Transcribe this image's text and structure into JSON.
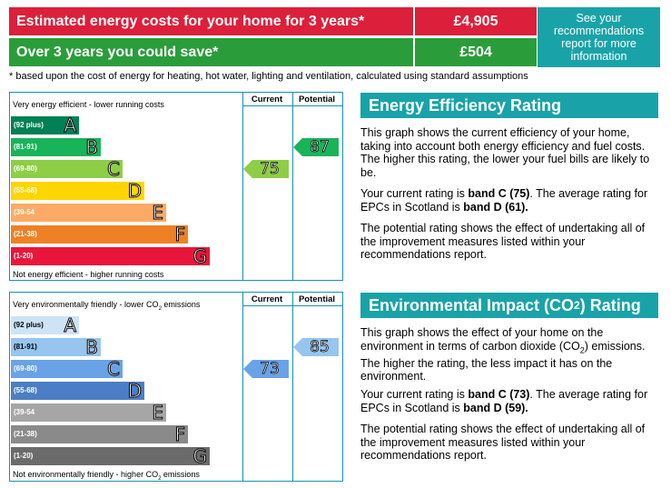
{
  "costs": {
    "estimated_label": "Estimated energy costs for your home for 3 years*",
    "estimated_value": "£4,905",
    "save_label": "Over 3 years you could save*",
    "save_value": "£504",
    "see_recs": "See your recommendations report for more information",
    "footnote": "* based upon the cost of energy for heating, hot water, lighting and ventilation, calculated using standard assumptions"
  },
  "energy_chart": {
    "top_text": "Very energy efficient - lower running costs",
    "bottom_text": "Not energy efficient - higher running costs",
    "col_current": "Current",
    "col_potential": "Potential",
    "current": "75",
    "potential": "87",
    "bands": [
      {
        "range": "(92 plus)",
        "letter": "A",
        "color": "#008054"
      },
      {
        "range": "(81-91)",
        "letter": "B",
        "color": "#19b459"
      },
      {
        "range": "(69-80)",
        "letter": "C",
        "color": "#8dce46"
      },
      {
        "range": "(55-68)",
        "letter": "D",
        "color": "#ffd500"
      },
      {
        "range": "(39-54",
        "letter": "E",
        "color": "#fcaa65"
      },
      {
        "range": "(21-38)",
        "letter": "F",
        "color": "#ef8023"
      },
      {
        "range": "(1-20)",
        "letter": "G",
        "color": "#e9153b"
      }
    ],
    "current_color": "#8dce46",
    "potential_color": "#19b459"
  },
  "env_chart": {
    "top_text": "Very environmentally friendly - lower CO",
    "top_text_sub": "2",
    "top_text_end": " emissions",
    "bottom_text": "Not environmentally friendly - higher CO",
    "bottom_text_sub": "2",
    "bottom_text_end": " emissions",
    "col_current": "Current",
    "col_potential": "Potential",
    "current": "73",
    "potential": "85",
    "bands": [
      {
        "range": "(92 plus)",
        "letter": "A",
        "color": "#cde4f7"
      },
      {
        "range": "(81-91)",
        "letter": "B",
        "color": "#97c5ef"
      },
      {
        "range": "(69-80)",
        "letter": "C",
        "color": "#6aa2e8"
      },
      {
        "range": "(55-68)",
        "letter": "D",
        "color": "#4b7ec4"
      },
      {
        "range": "(39-54",
        "letter": "E",
        "color": "#a6a6a6"
      },
      {
        "range": "(21-38)",
        "letter": "F",
        "color": "#8a8a8a"
      },
      {
        "range": "(1-20)",
        "letter": "G",
        "color": "#6b6b6b"
      }
    ],
    "current_color": "#6aa2e8",
    "potential_color": "#97c5ef"
  },
  "eer_panel": {
    "title": "Energy Efficiency Rating",
    "p1": "This graph shows the current efficiency of your home, taking into account both energy efficiency and fuel costs. The higher this rating, the lower your fuel bills are likely to be.",
    "p2a": "Your current rating is ",
    "p2b": "band C (75)",
    "p2c": ". The average rating for EPCs in Scotland is ",
    "p2d": "band D (61).",
    "p3": "The potential rating shows the effect of undertaking all of the improvement measures listed within your recommendations report."
  },
  "eir_panel": {
    "title_a": "Environmental Impact (CO",
    "title_sub": "2",
    "title_b": ") Rating",
    "p1a": "This graph shows the effect of your home on the environment in terms of carbon dioxide (CO",
    "p1sub": "2",
    "p1b": ") emissions. The higher the rating, the less impact it has on the environment.",
    "p2a": "Your current rating is ",
    "p2b": "band C (73)",
    "p2c": ". The average rating for EPCs in Scotland is ",
    "p2d": "band D (59).",
    "p3": "The potential rating shows the effect of undertaking all of the improvement measures listed within your recommendations report."
  }
}
